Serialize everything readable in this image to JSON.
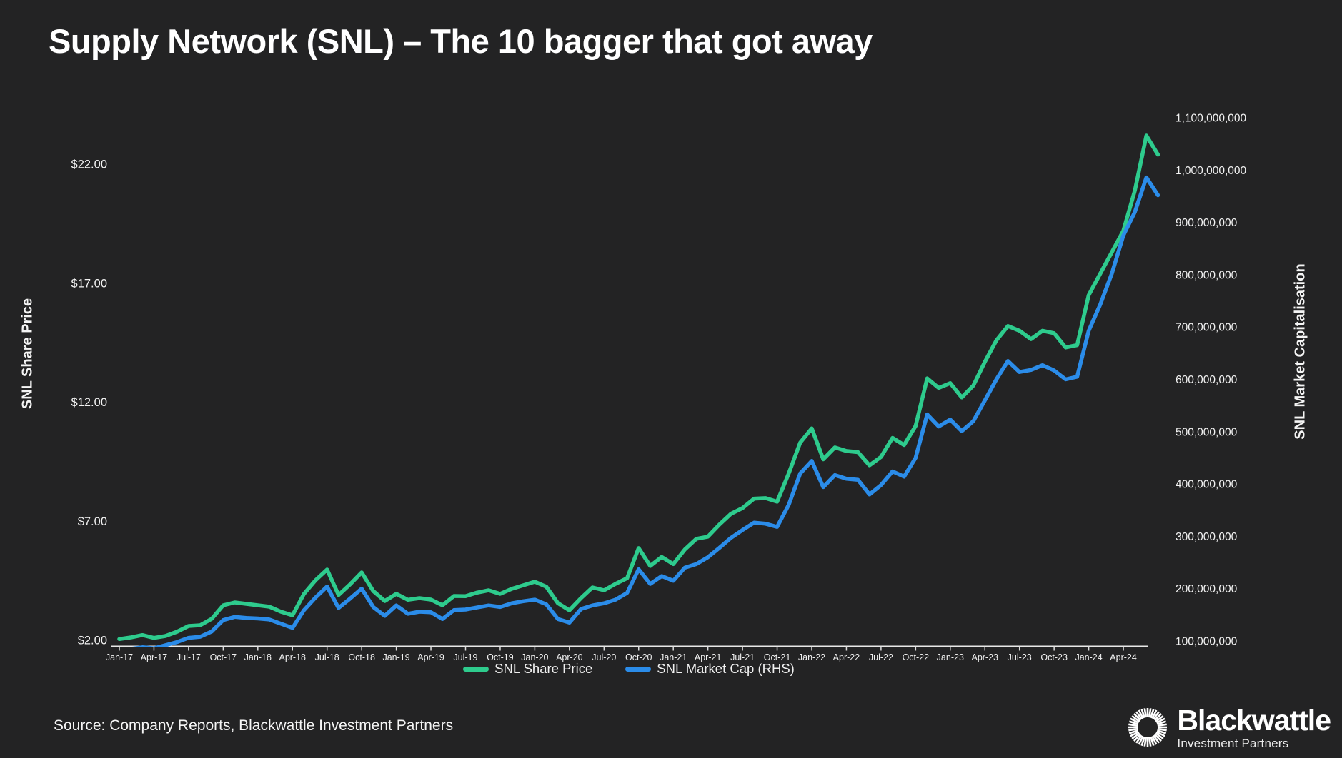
{
  "slide": {
    "title": "Supply Network (SNL) – The 10 bagger that got away",
    "source": "Source: Company Reports, Blackwattle Investment Partners",
    "background": "#232324"
  },
  "logo": {
    "name": "Blackwattle",
    "tagline": "Investment Partners",
    "icon": "sunburst-icon"
  },
  "chart_data": {
    "type": "line",
    "title": "Supply Network (SNL) – The 10 bagger that got away",
    "grid": false,
    "legend_position": "bottom",
    "x_frequency": "monthly",
    "x_range": [
      "Jan-17",
      "Jul-24"
    ],
    "x_tick_labels": [
      "Jan-17",
      "Apr-17",
      "Jul-17",
      "Oct-17",
      "Jan-18",
      "Apr-18",
      "Jul-18",
      "Oct-18",
      "Jan-19",
      "Apr-19",
      "Jul-19",
      "Oct-19",
      "Jan-20",
      "Apr-20",
      "Jul-20",
      "Oct-20",
      "Jan-21",
      "Apr-21",
      "Jul-21",
      "Oct-21",
      "Jan-22",
      "Apr-22",
      "Jul-22",
      "Oct-22",
      "Jan-23",
      "Apr-23",
      "Jul-23",
      "Oct-23",
      "Jan-24",
      "Apr-24"
    ],
    "left_axis": {
      "label": "SNL Share Price",
      "ticks": [
        "$2.00",
        "$7.00",
        "$12.00",
        "$17.00",
        "$22.00"
      ],
      "tick_values": [
        2,
        7,
        12,
        17,
        22
      ],
      "min": 2,
      "max": 23.5
    },
    "right_axis": {
      "label": "SNL Market Capitalisation",
      "ticks": [
        "100,000,000",
        "200,000,000",
        "300,000,000",
        "400,000,000",
        "500,000,000",
        "600,000,000",
        "700,000,000",
        "800,000,000",
        "900,000,000",
        "1,000,000,000",
        "1,100,000,000"
      ],
      "tick_values": [
        100,
        200,
        300,
        400,
        500,
        600,
        700,
        800,
        900,
        1000,
        1100
      ],
      "tick_values_unit": "millions",
      "min": 100,
      "max": 1100
    },
    "series": [
      {
        "name": "SNL Share Price",
        "axis": "left",
        "color": "#2ecb8d",
        "values": [
          2.05,
          2.12,
          2.22,
          2.1,
          2.18,
          2.36,
          2.6,
          2.63,
          2.9,
          3.47,
          3.59,
          3.53,
          3.47,
          3.41,
          3.2,
          3.05,
          3.95,
          4.52,
          4.97,
          3.9,
          4.35,
          4.85,
          4.07,
          3.65,
          3.95,
          3.7,
          3.77,
          3.71,
          3.47,
          3.86,
          3.85,
          4.0,
          4.1,
          3.95,
          4.16,
          4.31,
          4.46,
          4.25,
          3.56,
          3.26,
          3.77,
          4.22,
          4.1,
          4.37,
          4.61,
          5.87,
          5.12,
          5.5,
          5.2,
          5.81,
          6.26,
          6.35,
          6.86,
          7.31,
          7.55,
          7.95,
          7.97,
          7.82,
          9.0,
          10.3,
          10.9,
          9.6,
          10.1,
          9.95,
          9.9,
          9.35,
          9.7,
          10.5,
          10.2,
          11.0,
          13.0,
          12.6,
          12.8,
          12.2,
          12.7,
          13.7,
          14.6,
          15.2,
          15.0,
          14.65,
          15.0,
          14.9,
          14.3,
          14.4,
          16.5,
          17.4,
          18.3,
          19.2,
          20.9,
          23.2,
          22.4
        ]
      },
      {
        "name": "SNL Market Cap (RHS)",
        "axis": "right",
        "color": "#2b8ce9",
        "values_unit": "millions",
        "values": [
          82,
          85,
          88,
          86,
          92,
          98,
          106,
          108,
          118,
          140,
          146,
          144,
          143,
          141,
          133,
          125,
          159,
          183,
          204,
          163,
          181,
          200,
          165,
          148,
          168,
          152,
          156,
          155,
          142,
          159,
          160,
          164,
          168,
          165,
          172,
          176,
          179,
          170,
          142,
          135,
          161,
          168,
          172,
          179,
          192,
          237,
          209,
          224,
          215,
          240,
          247,
          260,
          278,
          297,
          312,
          326,
          324,
          318,
          360,
          420,
          444,
          394,
          417,
          410,
          408,
          380,
          398,
          424,
          414,
          450,
          533,
          510,
          523,
          501,
          520,
          560,
          600,
          635,
          614,
          618,
          627,
          617,
          600,
          605,
          693,
          743,
          802,
          875,
          920,
          986,
          952
        ]
      }
    ]
  }
}
